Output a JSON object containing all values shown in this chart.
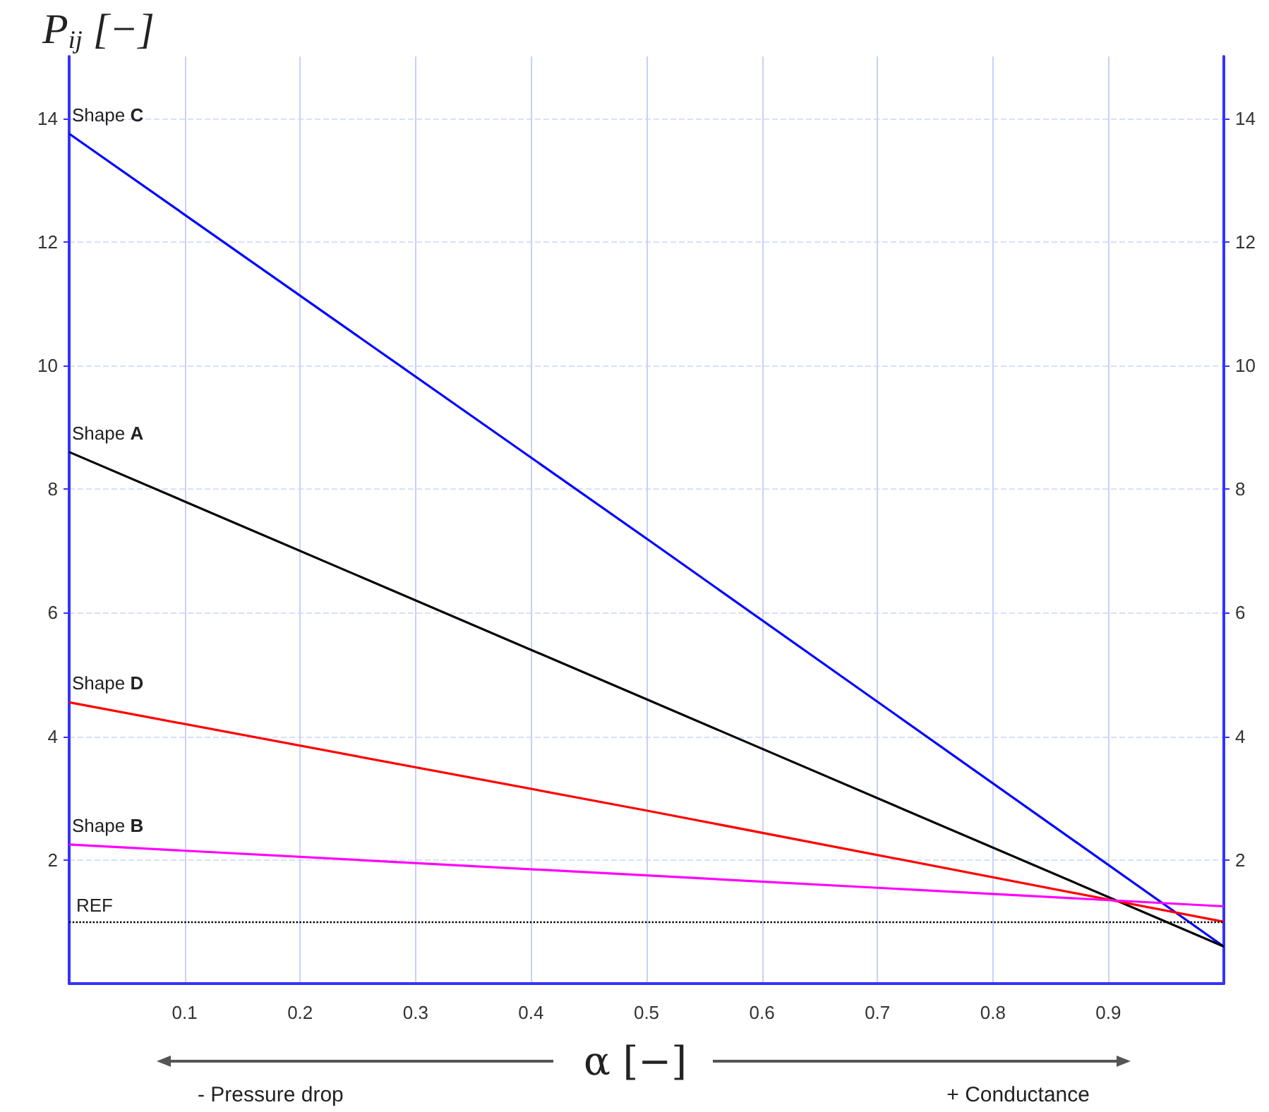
{
  "chart_data": {
    "type": "line",
    "ylabel": "P$_{ij}$ [−]",
    "xlabel": "α [−]",
    "annotations": [
      "- Pressure drop",
      "+ Conductance"
    ],
    "xlim": [
      0,
      1
    ],
    "xticks": [
      {
        "value": 0,
        "label": null
      },
      0.1,
      0.2,
      0.3,
      0.4,
      0.5,
      0.6,
      0.7,
      0.8,
      0.9,
      {
        "value": 1,
        "label": null
      }
    ],
    "ylim": [
      0,
      15
    ],
    "yticks": [
      2,
      4,
      6,
      8,
      10,
      12,
      14
    ],
    "y2lim": [
      0,
      15
    ],
    "y2ticks": [
      2,
      4,
      6,
      8,
      10,
      12,
      14
    ],
    "grid": true,
    "marker": "none",
    "line_style": "solid",
    "series": [
      {
        "name": "Shape C",
        "color": "#0000ff",
        "x": [
          0,
          0.5,
          1
        ],
        "values": [
          13.75,
          7.2,
          0.6
        ]
      },
      {
        "name": "Shape A",
        "color": "#000000",
        "x": [
          0,
          0.5,
          1
        ],
        "values": [
          8.6,
          4.6,
          0.6
        ]
      },
      {
        "name": "Shape D",
        "color": "#ff0000",
        "x": [
          0,
          0.5,
          1
        ],
        "values": [
          4.55,
          2.8,
          1.0
        ]
      },
      {
        "name": "Shape B",
        "color": "#ff00ff",
        "x": [
          0,
          0.5,
          1
        ],
        "values": [
          2.25,
          1.75,
          1.25
        ]
      }
    ],
    "ref_lines": [
      {
        "axis": "y",
        "value": 1,
        "label": "REF",
        "color": "#000000",
        "line_style": "dotted"
      }
    ]
  }
}
